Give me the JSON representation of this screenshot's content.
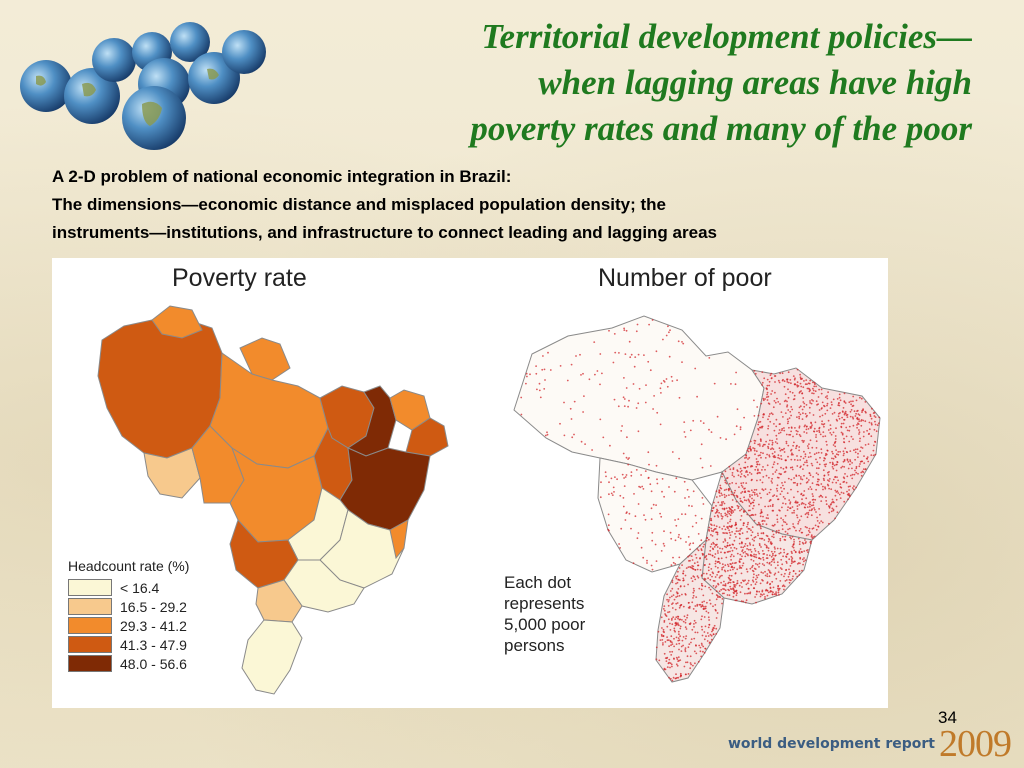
{
  "header": {
    "title_lines": [
      "Territorial development policies—",
      "when lagging areas have high",
      "poverty rates and many of the poor"
    ]
  },
  "subtitle": {
    "line1": "A 2-D problem of national economic integration in Brazil:",
    "line2": "The dimensions—economic distance and misplaced population density; the",
    "line3": "instruments—institutions, and infrastructure to connect leading and lagging areas"
  },
  "maps": {
    "left": {
      "title": "Poverty rate",
      "legend_title": "Headcount rate (%)",
      "legend": [
        {
          "label": "< 16.4",
          "color": "#fbf7d6"
        },
        {
          "label": "16.5 - 29.2",
          "color": "#f7c98d"
        },
        {
          "label": "29.3 - 41.2",
          "color": "#f28b2c"
        },
        {
          "label": "41.3 - 47.9",
          "color": "#cf5a12"
        },
        {
          "label": "48.0 - 56.6",
          "color": "#7f2a05"
        }
      ]
    },
    "right": {
      "title": "Number of poor",
      "note_lines": [
        "Each dot",
        "represents",
        "5,000 poor",
        "persons"
      ],
      "dot_color": "#d2242a"
    }
  },
  "footer": {
    "page_number": "34",
    "report_name": "world development report",
    "year": "2009"
  },
  "colors": {
    "title_green": "#1f7a1f",
    "background": "#efe7cf"
  }
}
